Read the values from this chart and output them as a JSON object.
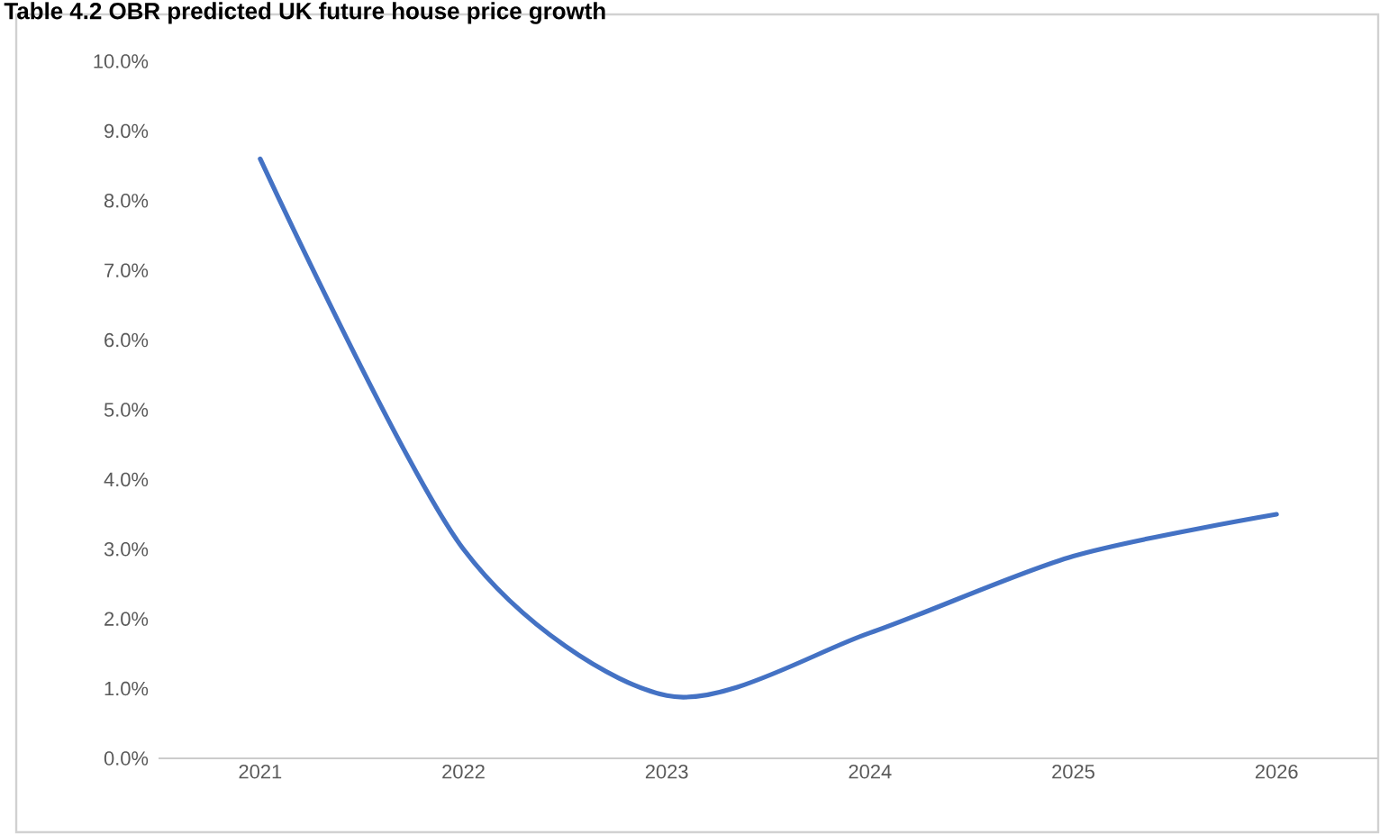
{
  "chart_data": {
    "type": "line",
    "title": "Table 4.2 OBR predicted UK future house price growth",
    "categories": [
      "2021",
      "2022",
      "2023",
      "2024",
      "2025",
      "2026"
    ],
    "series": [
      {
        "color": "#4472c4",
        "values": [
          8.6,
          3.0,
          0.9,
          1.8,
          2.9,
          3.5
        ]
      }
    ],
    "ylim": [
      0,
      10
    ],
    "yticks": [
      {
        "value": 0,
        "label": "0.0%"
      },
      {
        "value": 1,
        "label": "1.0%"
      },
      {
        "value": 2,
        "label": "2.0%"
      },
      {
        "value": 3,
        "label": "3.0%"
      },
      {
        "value": 4,
        "label": "4.0%"
      },
      {
        "value": 5,
        "label": "5.0%"
      },
      {
        "value": 6,
        "label": "6.0%"
      },
      {
        "value": 7,
        "label": "7.0%"
      },
      {
        "value": 8,
        "label": "8.0%"
      },
      {
        "value": 9,
        "label": "9.0%"
      },
      {
        "value": 10,
        "label": "10.0%"
      }
    ],
    "marker": "none",
    "line_style": "solid"
  }
}
